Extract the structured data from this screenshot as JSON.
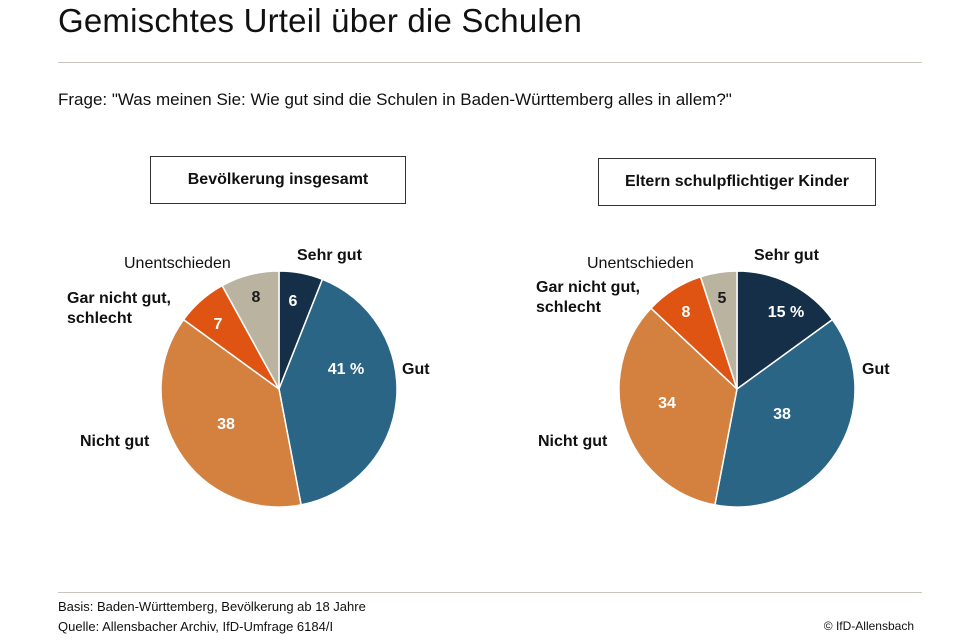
{
  "header": {
    "title": "Gemischtes Urteil über die Schulen",
    "question": "Frage: \"Was meinen Sie: Wie gut sind die Schulen in Baden-Württemberg alles in allem?\""
  },
  "colors": {
    "sehr_gut": "#142f47",
    "gut": "#2a6585",
    "nicht_gut": "#d4813f",
    "gar_nicht_gut": "#e05413",
    "unentschieden": "#b9b3a0"
  },
  "chart_data": [
    {
      "type": "pie",
      "title": "Bevölkerung insgesamt",
      "unit": "%",
      "slices": [
        {
          "label": "Sehr gut",
          "value": 6,
          "value_label": "6",
          "color": "#142f47"
        },
        {
          "label": "Gut",
          "value": 41,
          "value_label": "41 %",
          "color": "#2a6585"
        },
        {
          "label": "Nicht gut",
          "value": 38,
          "value_label": "38",
          "color": "#d4813f"
        },
        {
          "label": "Gar nicht gut, schlecht",
          "value": 7,
          "value_label": "7",
          "color": "#e05413"
        },
        {
          "label": "Unentschieden",
          "value": 8,
          "value_label": "8",
          "color": "#b9b3a0"
        }
      ]
    },
    {
      "type": "pie",
      "title": "Eltern schulpflichtiger Kinder",
      "unit": "%",
      "slices": [
        {
          "label": "Sehr gut",
          "value": 15,
          "value_label": "15 %",
          "color": "#142f47"
        },
        {
          "label": "Gut",
          "value": 38,
          "value_label": "38",
          "color": "#2a6585"
        },
        {
          "label": "Nicht gut",
          "value": 34,
          "value_label": "34",
          "color": "#d4813f"
        },
        {
          "label": "Gar nicht gut, schlecht",
          "value": 8,
          "value_label": "8",
          "color": "#e05413"
        },
        {
          "label": "Unentschieden",
          "value": 5,
          "value_label": "5",
          "color": "#b9b3a0"
        }
      ]
    }
  ],
  "footer": {
    "basis": "Basis: Baden-Württemberg, Bevölkerung ab 18 Jahre",
    "source": "Quelle: Allensbacher Archiv, IfD-Umfrage 6184/I",
    "credit": "© IfD-Allensbach"
  }
}
